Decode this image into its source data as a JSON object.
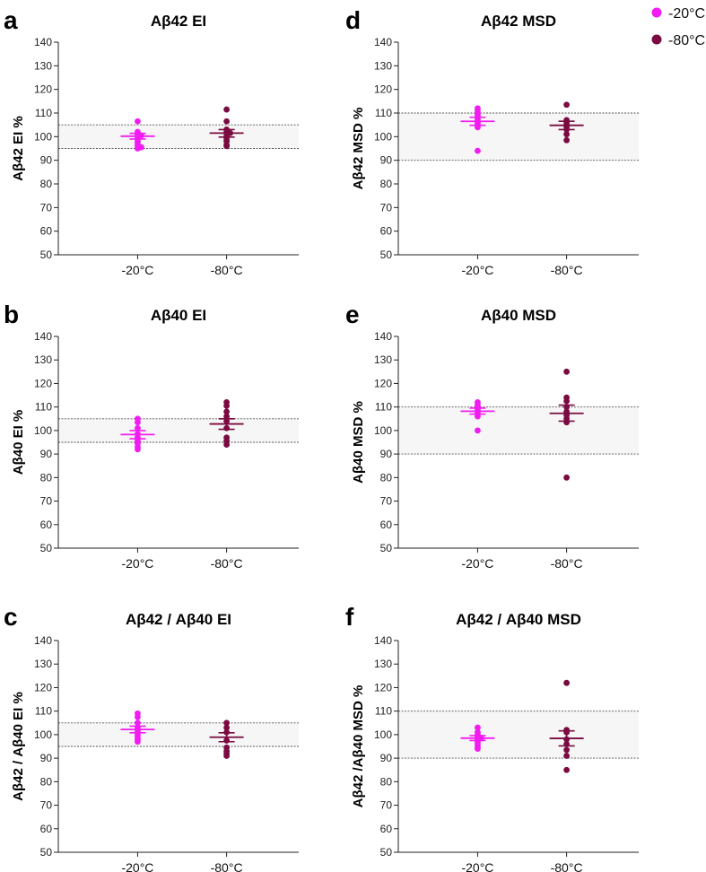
{
  "legend": {
    "entries": [
      {
        "label": "-20°C",
        "color": "#f21cf2"
      },
      {
        "label": "-80°C",
        "color": "#7a0a40"
      }
    ],
    "placement": "top-right"
  },
  "chart_data": [
    {
      "panel": "a",
      "type": "scatter",
      "title": "Aβ42 EI",
      "ylabel": "Aβ42 EI %",
      "categories": [
        "-20°C",
        "-80°C"
      ],
      "ylim": [
        50,
        140
      ],
      "yticks": [
        50,
        60,
        70,
        80,
        90,
        100,
        110,
        120,
        130,
        140
      ],
      "reference_band": [
        95,
        105
      ],
      "series": [
        {
          "name": "-20°C",
          "points": [
            106.5,
            102,
            101,
            100.5,
            100,
            99,
            98,
            97,
            96,
            95.5,
            95
          ],
          "mean": 100.2,
          "sem_bar": [
            99.0,
            101.4
          ],
          "color": "#f21cf2"
        },
        {
          "name": "-80°C",
          "points": [
            111.5,
            106.5,
            103,
            102,
            101.5,
            100.5,
            99,
            98,
            96.5,
            96
          ],
          "mean": 101.5,
          "sem_bar": [
            99.8,
            103.0
          ],
          "color": "#7a0a40"
        }
      ]
    },
    {
      "panel": "b",
      "type": "scatter",
      "title": "Aβ40 EI",
      "ylabel": "Aβ40 EI %",
      "categories": [
        "-20°C",
        "-80°C"
      ],
      "ylim": [
        50,
        140
      ],
      "yticks": [
        50,
        60,
        70,
        80,
        90,
        100,
        110,
        120,
        130,
        140
      ],
      "reference_band": [
        95,
        105
      ],
      "series": [
        {
          "name": "-20°C",
          "points": [
            105,
            103.5,
            101,
            98.5,
            97,
            95.5,
            94.5,
            93,
            92
          ],
          "mean": 98.3,
          "sem_bar": [
            96.5,
            100.0
          ],
          "color": "#f21cf2"
        },
        {
          "name": "-80°C",
          "points": [
            112,
            110.5,
            108,
            106,
            104,
            101,
            97,
            95.5,
            94
          ],
          "mean": 102.8,
          "sem_bar": [
            100.5,
            105.0
          ],
          "color": "#7a0a40"
        }
      ]
    },
    {
      "panel": "c",
      "type": "scatter",
      "title": "Aβ42 / Aβ40 EI",
      "ylabel": "Aβ42 / Aβ40 EI %",
      "categories": [
        "-20°C",
        "-80°C"
      ],
      "ylim": [
        50,
        140
      ],
      "yticks": [
        50,
        60,
        70,
        80,
        90,
        100,
        110,
        120,
        130,
        140
      ],
      "reference_band": [
        95,
        105
      ],
      "series": [
        {
          "name": "-20°C",
          "points": [
            109,
            107.5,
            105,
            103,
            102,
            101,
            100,
            99,
            98,
            97
          ],
          "mean": 102.2,
          "sem_bar": [
            100.8,
            103.6
          ],
          "color": "#f21cf2"
        },
        {
          "name": "-80°C",
          "points": [
            105,
            103,
            101,
            97.5,
            94.5,
            93,
            92,
            91
          ],
          "mean": 98.9,
          "sem_bar": [
            97.0,
            100.8
          ],
          "color": "#7a0a40"
        }
      ]
    },
    {
      "panel": "d",
      "type": "scatter",
      "title": "Aβ42 MSD",
      "ylabel": "Aβ42 MSD %",
      "categories": [
        "-20°C",
        "-80°C"
      ],
      "ylim": [
        50,
        140
      ],
      "yticks": [
        50,
        60,
        70,
        80,
        90,
        100,
        110,
        120,
        130,
        140
      ],
      "reference_band": [
        90,
        110
      ],
      "series": [
        {
          "name": "-20°C",
          "points": [
            112,
            111,
            110,
            109,
            108,
            107,
            106,
            105,
            104,
            94
          ],
          "mean": 106.5,
          "sem_bar": [
            104.8,
            108.2
          ],
          "color": "#f21cf2"
        },
        {
          "name": "-80°C",
          "points": [
            113.5,
            107,
            106,
            105,
            104,
            103,
            101,
            98.5
          ],
          "mean": 104.8,
          "sem_bar": [
            103.0,
            106.5
          ],
          "color": "#7a0a40"
        }
      ]
    },
    {
      "panel": "e",
      "type": "scatter",
      "title": "Aβ40 MSD",
      "ylabel": "Aβ40 MSD %",
      "categories": [
        "-20°C",
        "-80°C"
      ],
      "ylim": [
        50,
        140
      ],
      "yticks": [
        50,
        60,
        70,
        80,
        90,
        100,
        110,
        120,
        130,
        140
      ],
      "reference_band": [
        90,
        110
      ],
      "series": [
        {
          "name": "-20°C",
          "points": [
            112,
            111,
            110,
            109,
            108,
            107,
            106,
            100
          ],
          "mean": 108.2,
          "sem_bar": [
            107.0,
            109.5
          ],
          "color": "#f21cf2"
        },
        {
          "name": "-80°C",
          "points": [
            125,
            114,
            112.5,
            110,
            108,
            106.5,
            105,
            103.5,
            80
          ],
          "mean": 107.3,
          "sem_bar": [
            104.0,
            110.8
          ],
          "color": "#7a0a40"
        }
      ]
    },
    {
      "panel": "f",
      "type": "scatter",
      "title": "Aβ42 / Aβ40 MSD",
      "ylabel": "Aβ42 /Aβ40 MSD %",
      "categories": [
        "-20°C",
        "-80°C"
      ],
      "ylim": [
        50,
        140
      ],
      "yticks": [
        50,
        60,
        70,
        80,
        90,
        100,
        110,
        120,
        130,
        140
      ],
      "reference_band": [
        90,
        110
      ],
      "series": [
        {
          "name": "-20°C",
          "points": [
            103,
            101,
            100,
            99,
            98.5,
            98,
            97,
            96,
            95,
            94
          ],
          "mean": 98.5,
          "sem_bar": [
            97.5,
            99.6
          ],
          "color": "#f21cf2"
        },
        {
          "name": "-80°C",
          "points": [
            122,
            102,
            101,
            98,
            96,
            93.5,
            91,
            85
          ],
          "mean": 98.4,
          "sem_bar": [
            95.2,
            101.6
          ],
          "color": "#7a0a40"
        }
      ]
    }
  ]
}
